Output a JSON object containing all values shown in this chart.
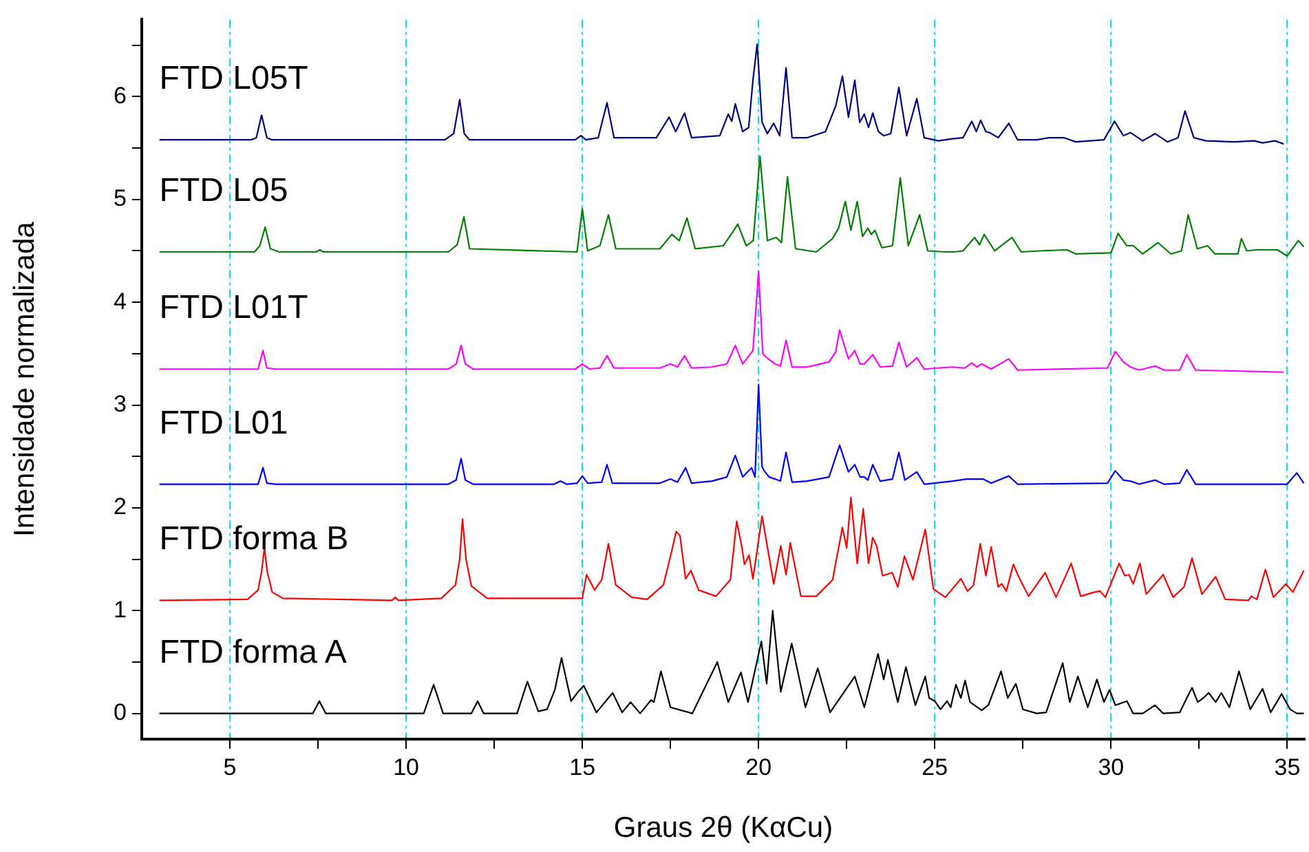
{
  "chart_data": {
    "type": "line",
    "xlabel": "Graus 2θ (KαCu)",
    "ylabel": "Intensidade normalizada",
    "xlim": [
      2.5,
      35.5
    ],
    "ylim": [
      -0.25,
      6.75
    ],
    "xticks": [
      5,
      {
        "value": 7.5,
        "label": null
      },
      10,
      {
        "value": 12.5,
        "label": null
      },
      15,
      {
        "value": 17.5,
        "label": null
      },
      20,
      {
        "value": 22.5,
        "label": null
      },
      25,
      {
        "value": 27.5,
        "label": null
      },
      30,
      {
        "value": 32.5,
        "label": null
      },
      35
    ],
    "yticks": [
      0,
      {
        "value": 0.5,
        "label": null
      },
      1,
      {
        "value": 1.5,
        "label": null
      },
      2,
      {
        "value": 2.5,
        "label": null
      },
      3,
      {
        "value": 3.5,
        "label": null
      },
      4,
      {
        "value": 4.5,
        "label": null
      },
      5,
      {
        "value": 5.5,
        "label": null
      },
      6,
      {
        "value": 6.5,
        "label": null
      }
    ],
    "grid": "x",
    "legend": false,
    "marker": "none",
    "line_style": "solid",
    "series": [
      {
        "name": "FTD L05T",
        "color": "#000080",
        "x": [
          3.0,
          5.6,
          5.75,
          5.9,
          6.05,
          6.2,
          11.1,
          11.35,
          11.52,
          11.65,
          11.8,
          14.8,
          14.96,
          15.1,
          15.45,
          15.7,
          15.9,
          17.1,
          17.46,
          17.65,
          17.9,
          18.1,
          18.9,
          19.14,
          19.24,
          19.34,
          19.55,
          19.72,
          19.84,
          19.96,
          20.1,
          20.25,
          20.43,
          20.6,
          20.78,
          20.95,
          21.37,
          21.9,
          22.19,
          22.38,
          22.55,
          22.73,
          22.87,
          23.0,
          23.12,
          23.24,
          23.4,
          23.55,
          23.75,
          23.98,
          24.2,
          24.49,
          24.7,
          25.1,
          25.5,
          25.8,
          26.05,
          26.18,
          26.3,
          26.45,
          26.56,
          26.8,
          27.1,
          27.35,
          27.9,
          28.24,
          28.67,
          29.0,
          29.8,
          30.1,
          30.35,
          30.55,
          30.9,
          31.25,
          31.6,
          31.9,
          32.1,
          32.35,
          32.7,
          33.5,
          34.06,
          34.3,
          34.65,
          34.9
        ],
        "values": [
          5.58,
          5.58,
          5.6,
          5.82,
          5.6,
          5.58,
          5.58,
          5.64,
          5.97,
          5.64,
          5.58,
          5.58,
          5.62,
          5.58,
          5.6,
          5.94,
          5.6,
          5.6,
          5.8,
          5.66,
          5.84,
          5.6,
          5.62,
          5.83,
          5.76,
          5.93,
          5.66,
          5.7,
          6.16,
          6.51,
          5.75,
          5.64,
          5.74,
          5.62,
          6.28,
          5.6,
          5.6,
          5.66,
          5.91,
          6.2,
          5.8,
          6.16,
          5.75,
          5.83,
          5.7,
          5.84,
          5.66,
          5.62,
          5.64,
          6.09,
          5.62,
          5.98,
          5.6,
          5.57,
          5.59,
          5.6,
          5.76,
          5.66,
          5.77,
          5.66,
          5.65,
          5.6,
          5.74,
          5.58,
          5.58,
          5.6,
          5.6,
          5.56,
          5.58,
          5.76,
          5.62,
          5.65,
          5.57,
          5.64,
          5.56,
          5.6,
          5.86,
          5.6,
          5.57,
          5.56,
          5.57,
          5.55,
          5.57,
          5.54
        ]
      },
      {
        "name": "FTD L05",
        "color": "#008000",
        "x": [
          3.0,
          5.7,
          5.85,
          6.0,
          6.15,
          6.4,
          7.45,
          7.55,
          7.65,
          11.2,
          11.45,
          11.64,
          11.8,
          14.85,
          15.0,
          15.15,
          15.5,
          15.74,
          15.95,
          17.2,
          17.54,
          17.75,
          17.97,
          18.2,
          19.0,
          19.26,
          19.41,
          19.65,
          19.85,
          20.04,
          20.25,
          20.5,
          20.65,
          20.82,
          21.05,
          21.64,
          22.1,
          22.27,
          22.46,
          22.62,
          22.8,
          22.95,
          23.1,
          23.2,
          23.3,
          23.5,
          23.8,
          24.02,
          24.25,
          24.57,
          24.8,
          25.3,
          25.55,
          25.8,
          26.13,
          26.27,
          26.4,
          26.7,
          27.19,
          27.45,
          28.0,
          28.75,
          29.0,
          30.0,
          30.2,
          30.45,
          30.63,
          30.9,
          31.33,
          31.7,
          32.0,
          32.19,
          32.45,
          32.74,
          32.95,
          33.6,
          33.7,
          33.85,
          34.13,
          34.72,
          35.0,
          35.31,
          35.47
        ],
        "values": [
          4.49,
          4.49,
          4.55,
          4.73,
          4.52,
          4.49,
          4.49,
          4.51,
          4.49,
          4.49,
          4.56,
          4.83,
          4.52,
          4.49,
          4.91,
          4.5,
          4.55,
          4.85,
          4.52,
          4.52,
          4.66,
          4.6,
          4.82,
          4.52,
          4.55,
          4.68,
          4.76,
          4.55,
          4.6,
          5.42,
          4.6,
          4.63,
          4.58,
          5.22,
          4.52,
          4.49,
          4.62,
          4.72,
          4.98,
          4.7,
          4.98,
          4.64,
          4.72,
          4.66,
          4.7,
          4.53,
          4.55,
          5.21,
          4.55,
          4.85,
          4.5,
          4.49,
          4.49,
          4.5,
          4.63,
          4.56,
          4.66,
          4.5,
          4.63,
          4.49,
          4.5,
          4.51,
          4.47,
          4.48,
          4.67,
          4.55,
          4.55,
          4.47,
          4.58,
          4.47,
          4.5,
          4.85,
          4.52,
          4.55,
          4.47,
          4.47,
          4.62,
          4.5,
          4.51,
          4.51,
          4.45,
          4.6,
          4.54
        ]
      },
      {
        "name": "FTD L01T",
        "color": "#ff00ff",
        "x": [
          3.0,
          5.8,
          5.94,
          6.05,
          6.3,
          11.2,
          11.42,
          11.56,
          11.68,
          11.9,
          14.8,
          15.0,
          15.2,
          15.5,
          15.7,
          15.9,
          17.2,
          17.5,
          17.7,
          17.9,
          18.1,
          18.67,
          19.1,
          19.34,
          19.55,
          19.84,
          20.0,
          20.12,
          20.2,
          20.47,
          20.62,
          20.78,
          20.95,
          21.37,
          22.0,
          22.19,
          22.3,
          22.55,
          22.73,
          22.88,
          23.0,
          23.24,
          23.45,
          23.8,
          23.98,
          24.2,
          24.49,
          24.7,
          25.5,
          25.85,
          26.05,
          26.2,
          26.33,
          26.6,
          27.1,
          27.35,
          29.9,
          30.12,
          30.35,
          30.55,
          30.8,
          31.25,
          31.5,
          31.95,
          32.15,
          32.4,
          34.9
        ],
        "values": [
          3.35,
          3.35,
          3.53,
          3.36,
          3.35,
          3.35,
          3.4,
          3.58,
          3.4,
          3.35,
          3.35,
          3.4,
          3.35,
          3.36,
          3.48,
          3.36,
          3.36,
          3.4,
          3.37,
          3.48,
          3.36,
          3.37,
          3.4,
          3.58,
          3.4,
          3.53,
          4.3,
          3.5,
          3.47,
          3.4,
          3.38,
          3.63,
          3.37,
          3.37,
          3.42,
          3.52,
          3.73,
          3.45,
          3.53,
          3.4,
          3.4,
          3.49,
          3.37,
          3.38,
          3.61,
          3.37,
          3.46,
          3.35,
          3.37,
          3.36,
          3.41,
          3.37,
          3.4,
          3.35,
          3.45,
          3.34,
          3.36,
          3.52,
          3.42,
          3.37,
          3.34,
          3.38,
          3.34,
          3.34,
          3.49,
          3.34,
          3.32
        ]
      },
      {
        "name": "FTD L01",
        "color": "#0000ff",
        "x": [
          3.0,
          5.8,
          5.94,
          6.05,
          6.3,
          11.2,
          11.42,
          11.56,
          11.68,
          11.9,
          14.2,
          14.38,
          14.55,
          14.85,
          15.0,
          15.15,
          15.55,
          15.7,
          15.85,
          17.2,
          17.5,
          17.7,
          17.93,
          18.1,
          18.67,
          19.1,
          19.34,
          19.55,
          19.8,
          19.9,
          20.0,
          20.1,
          20.16,
          20.3,
          20.47,
          20.62,
          20.78,
          20.95,
          21.37,
          22.0,
          22.3,
          22.55,
          22.73,
          22.88,
          23.0,
          23.1,
          23.24,
          23.45,
          23.8,
          23.98,
          24.15,
          24.49,
          24.7,
          25.5,
          25.9,
          26.1,
          26.37,
          26.6,
          27.1,
          27.35,
          29.9,
          30.12,
          30.35,
          30.55,
          30.8,
          31.25,
          31.5,
          31.95,
          32.15,
          32.4,
          35.0,
          35.27,
          35.47
        ],
        "values": [
          2.23,
          2.23,
          2.39,
          2.24,
          2.23,
          2.23,
          2.27,
          2.48,
          2.27,
          2.23,
          2.23,
          2.26,
          2.23,
          2.24,
          2.31,
          2.24,
          2.25,
          2.42,
          2.24,
          2.24,
          2.28,
          2.25,
          2.39,
          2.24,
          2.26,
          2.3,
          2.51,
          2.3,
          2.39,
          2.3,
          3.2,
          2.4,
          2.36,
          2.3,
          2.28,
          2.26,
          2.54,
          2.25,
          2.26,
          2.3,
          2.61,
          2.35,
          2.42,
          2.3,
          2.3,
          2.27,
          2.42,
          2.26,
          2.28,
          2.54,
          2.27,
          2.35,
          2.23,
          2.26,
          2.28,
          2.28,
          2.28,
          2.24,
          2.31,
          2.23,
          2.24,
          2.36,
          2.27,
          2.26,
          2.23,
          2.27,
          2.23,
          2.24,
          2.37,
          2.23,
          2.23,
          2.34,
          2.24
        ]
      },
      {
        "name": "FTD forma B",
        "color": "#ff0000",
        "x": [
          3.0,
          5.5,
          5.8,
          5.9,
          5.98,
          6.06,
          6.2,
          6.5,
          9.6,
          9.69,
          9.78,
          11.0,
          11.4,
          11.52,
          11.6,
          11.7,
          11.85,
          12.3,
          15.0,
          15.12,
          15.35,
          15.55,
          15.74,
          15.95,
          16.4,
          16.84,
          17.3,
          17.55,
          17.66,
          17.77,
          17.93,
          18.08,
          18.3,
          18.79,
          19.2,
          19.38,
          19.53,
          19.6,
          19.73,
          19.84,
          20.1,
          20.43,
          20.63,
          20.78,
          20.9,
          21.2,
          21.64,
          22.1,
          22.38,
          22.5,
          22.62,
          22.8,
          22.97,
          23.12,
          23.24,
          23.35,
          23.52,
          23.79,
          23.95,
          24.14,
          24.38,
          24.73,
          24.96,
          25.3,
          25.74,
          25.93,
          26.1,
          26.29,
          26.45,
          26.6,
          26.8,
          26.9,
          27.03,
          27.23,
          27.38,
          27.66,
          28.13,
          28.44,
          28.87,
          29.14,
          29.53,
          29.69,
          29.84,
          30.23,
          30.39,
          30.51,
          30.63,
          30.82,
          31.0,
          31.48,
          31.76,
          32.07,
          32.3,
          32.58,
          32.97,
          33.24,
          33.9,
          33.98,
          34.14,
          34.38,
          34.61,
          34.96,
          35.16,
          35.47
        ],
        "values": [
          1.1,
          1.11,
          1.2,
          1.38,
          1.61,
          1.38,
          1.18,
          1.12,
          1.1,
          1.13,
          1.1,
          1.12,
          1.25,
          1.5,
          1.89,
          1.5,
          1.24,
          1.12,
          1.12,
          1.35,
          1.2,
          1.3,
          1.65,
          1.25,
          1.13,
          1.11,
          1.25,
          1.6,
          1.77,
          1.73,
          1.31,
          1.39,
          1.2,
          1.14,
          1.3,
          1.87,
          1.61,
          1.45,
          1.54,
          1.31,
          1.92,
          1.26,
          1.63,
          1.35,
          1.66,
          1.14,
          1.14,
          1.3,
          1.81,
          1.61,
          2.1,
          1.46,
          1.99,
          1.46,
          1.71,
          1.63,
          1.34,
          1.37,
          1.23,
          1.53,
          1.3,
          1.79,
          1.21,
          1.13,
          1.31,
          1.19,
          1.25,
          1.65,
          1.34,
          1.62,
          1.23,
          1.26,
          1.19,
          1.45,
          1.33,
          1.14,
          1.37,
          1.13,
          1.46,
          1.14,
          1.18,
          1.19,
          1.13,
          1.46,
          1.34,
          1.35,
          1.26,
          1.46,
          1.16,
          1.35,
          1.13,
          1.23,
          1.51,
          1.16,
          1.33,
          1.11,
          1.1,
          1.14,
          1.11,
          1.4,
          1.13,
          1.26,
          1.18,
          1.39
        ]
      },
      {
        "name": "FTD forma A",
        "color": "#000000",
        "x": [
          3.0,
          7.35,
          7.54,
          7.72,
          10.5,
          10.78,
          11.05,
          11.85,
          12.03,
          12.2,
          13.15,
          13.44,
          13.75,
          14.0,
          14.22,
          14.41,
          14.68,
          14.88,
          15.04,
          15.4,
          15.86,
          16.13,
          16.37,
          16.64,
          16.95,
          17.03,
          17.23,
          17.5,
          18.12,
          18.83,
          19.14,
          19.5,
          19.7,
          20.08,
          20.23,
          20.4,
          20.63,
          20.94,
          21.33,
          21.68,
          22.03,
          22.73,
          23.0,
          23.39,
          23.55,
          23.67,
          23.95,
          24.18,
          24.45,
          24.73,
          24.84,
          25.0,
          25.16,
          25.35,
          25.45,
          25.6,
          25.74,
          25.86,
          26.0,
          26.33,
          26.52,
          26.88,
          27.07,
          27.3,
          27.5,
          27.89,
          28.16,
          28.63,
          28.83,
          29.06,
          29.34,
          29.6,
          29.8,
          29.96,
          30.12,
          30.45,
          30.63,
          30.9,
          31.25,
          31.48,
          31.95,
          32.15,
          32.3,
          32.46,
          32.62,
          32.77,
          32.97,
          33.13,
          33.36,
          33.63,
          33.95,
          34.3,
          34.53,
          34.84,
          35.08,
          35.27,
          35.47
        ],
        "values": [
          0,
          0,
          0.12,
          0,
          0,
          0.28,
          0,
          0,
          0.12,
          0,
          0,
          0.31,
          0.02,
          0.04,
          0.23,
          0.54,
          0.12,
          0.21,
          0.27,
          0.01,
          0.2,
          0.01,
          0.11,
          0,
          0.13,
          0.11,
          0.41,
          0.06,
          0,
          0.5,
          0.11,
          0.4,
          0.11,
          0.7,
          0.29,
          1.0,
          0.21,
          0.68,
          0.06,
          0.44,
          0.01,
          0.36,
          0.06,
          0.58,
          0.33,
          0.52,
          0.11,
          0.45,
          0.08,
          0.36,
          0.15,
          0.12,
          0.04,
          0.12,
          0.06,
          0.28,
          0.15,
          0.32,
          0.11,
          0.03,
          0.08,
          0.41,
          0.15,
          0.29,
          0.04,
          0,
          0.01,
          0.49,
          0.11,
          0.36,
          0.06,
          0.33,
          0.11,
          0.23,
          0.08,
          0.12,
          0,
          0,
          0.08,
          0,
          0.01,
          0.15,
          0.25,
          0.11,
          0.15,
          0.2,
          0.11,
          0.2,
          0.06,
          0.41,
          0.04,
          0.24,
          0.01,
          0.19,
          0.04,
          0,
          0
        ]
      }
    ]
  }
}
